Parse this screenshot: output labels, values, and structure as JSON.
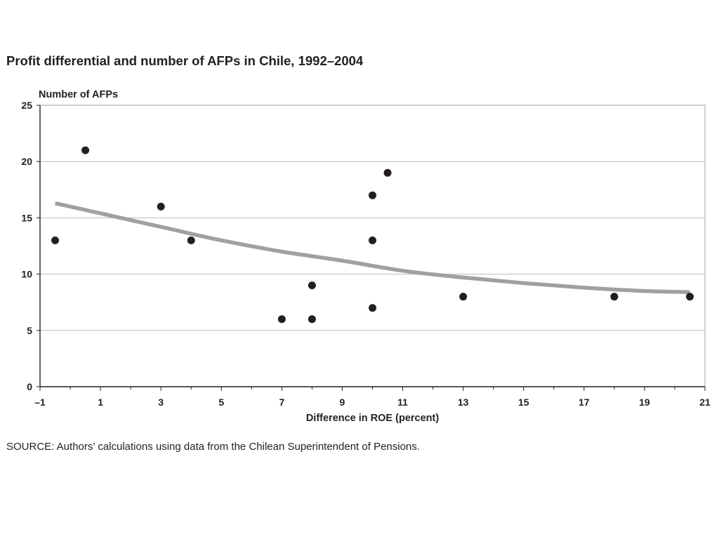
{
  "figure": {
    "title": "Profit differential and number of AFPs in Chile, 1992–2004",
    "source": "SOURCE: Authors’ calculations using data from the Chilean Superintendent of Pensions."
  },
  "chart_data": {
    "type": "scatter",
    "title": "Profit differential and number of AFPs in Chile, 1992–2004",
    "xlabel": "Difference in ROE (percent)",
    "ylabel": "Number of AFPs",
    "xlim": [
      -1,
      21
    ],
    "ylim": [
      0,
      25
    ],
    "x_ticks": [
      -1,
      1,
      3,
      5,
      7,
      9,
      11,
      13,
      15,
      17,
      19,
      21
    ],
    "x_tick_labels": [
      "–1",
      "1",
      "3",
      "5",
      "7",
      "9",
      "11",
      "13",
      "15",
      "17",
      "19",
      "21"
    ],
    "y_ticks": [
      0,
      5,
      10,
      15,
      20,
      25
    ],
    "y_tick_labels": [
      "0",
      "5",
      "10",
      "15",
      "20",
      "25"
    ],
    "grid": "horizontal",
    "series": [
      {
        "points": [
          {
            "x": -0.5,
            "y": 13
          },
          {
            "x": 0.5,
            "y": 21
          },
          {
            "x": 3,
            "y": 16
          },
          {
            "x": 4,
            "y": 13
          },
          {
            "x": 7,
            "y": 6
          },
          {
            "x": 8,
            "y": 9
          },
          {
            "x": 8,
            "y": 6
          },
          {
            "x": 10,
            "y": 17
          },
          {
            "x": 10,
            "y": 13
          },
          {
            "x": 10,
            "y": 7
          },
          {
            "x": 10.5,
            "y": 19
          },
          {
            "x": 13,
            "y": 8
          },
          {
            "x": 18,
            "y": 8
          },
          {
            "x": 20.5,
            "y": 8
          }
        ],
        "color": "#231f20"
      }
    ],
    "trend_line": {
      "points": [
        {
          "x": -0.5,
          "y": 16.3
        },
        {
          "x": 1,
          "y": 15.4
        },
        {
          "x": 3,
          "y": 14.2
        },
        {
          "x": 5,
          "y": 13.0
        },
        {
          "x": 7,
          "y": 12.0
        },
        {
          "x": 9,
          "y": 11.2
        },
        {
          "x": 11,
          "y": 10.3
        },
        {
          "x": 13,
          "y": 9.7
        },
        {
          "x": 15,
          "y": 9.2
        },
        {
          "x": 17,
          "y": 8.8
        },
        {
          "x": 19,
          "y": 8.5
        },
        {
          "x": 20.5,
          "y": 8.4
        }
      ],
      "color": "#a0a0a0"
    },
    "gridline_color": "#b9b9b9",
    "frame_color": "#a3a3a3",
    "axis_color": "#231f20"
  }
}
